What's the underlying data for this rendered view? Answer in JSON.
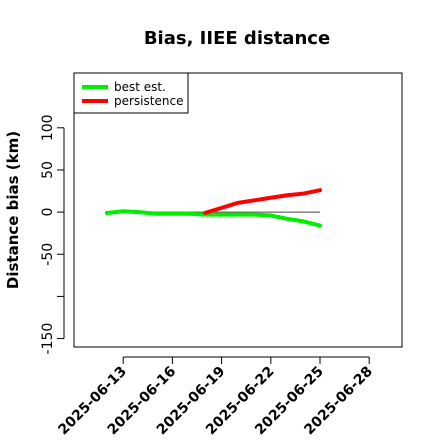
{
  "chart_data": {
    "type": "line",
    "title": "Bias, IIEE distance",
    "xlabel": "",
    "ylabel": "Distance bias (km)",
    "x_ticks": [
      "2025-06-13",
      "2025-06-16",
      "2025-06-19",
      "2025-06-22",
      "2025-06-25",
      "2025-06-28"
    ],
    "y_ticks": [
      -150,
      -50,
      0,
      50,
      100
    ],
    "xlim": [
      "2025-06-10",
      "2025-06-30"
    ],
    "ylim": [
      -160,
      165
    ],
    "reference_line": 0,
    "series": [
      {
        "name": "best est.",
        "color": "#00ee00",
        "x": [
          "2025-06-12",
          "2025-06-13",
          "2025-06-14",
          "2025-06-15",
          "2025-06-16",
          "2025-06-17",
          "2025-06-18",
          "2025-06-19",
          "2025-06-20",
          "2025-06-21",
          "2025-06-22",
          "2025-06-23",
          "2025-06-24",
          "2025-06-25"
        ],
        "y": [
          -1,
          1,
          0,
          -2,
          -2,
          -2,
          -3,
          -3,
          -3,
          -3,
          -4,
          -8,
          -11,
          -16
        ]
      },
      {
        "name": "persistence",
        "color": "#ff0000",
        "x": [
          "2025-06-18",
          "2025-06-19",
          "2025-06-20",
          "2025-06-21",
          "2025-06-22",
          "2025-06-23",
          "2025-06-24",
          "2025-06-25"
        ],
        "y": [
          -1,
          5,
          11,
          14,
          17,
          20,
          22,
          26
        ]
      }
    ],
    "grid": false,
    "legend": "top-left"
  }
}
